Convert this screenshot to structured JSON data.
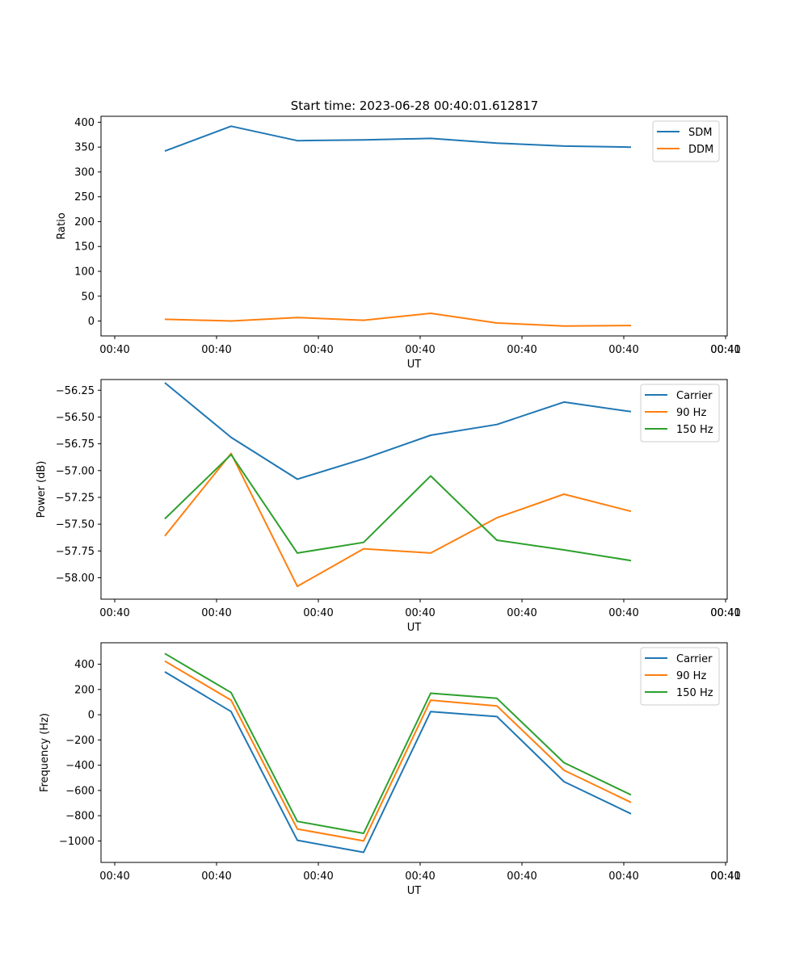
{
  "title": "Start time: 2023-06-28 00:40:01.612817",
  "chart_data": [
    {
      "type": "line",
      "ylabel": "Ratio",
      "xlabel": "UT",
      "x_tick_labels": [
        "00:40",
        "00:40",
        "00:40",
        "00:40",
        "00:40",
        "00:40",
        "00:40",
        "00:41"
      ],
      "ylim": [
        -30,
        412
      ],
      "y_ticks": [
        0,
        50,
        100,
        150,
        200,
        250,
        300,
        350,
        400
      ],
      "legend": "top-right",
      "series": [
        {
          "name": "SDM",
          "color": "#1f77b4",
          "values": [
            342,
            392,
            363,
            364.5,
            367.5,
            358,
            352,
            350
          ]
        },
        {
          "name": "DDM",
          "color": "#ff7f0e",
          "values": [
            3.5,
            0,
            7,
            1.5,
            15.5,
            -4,
            -10,
            -9
          ]
        }
      ]
    },
    {
      "type": "line",
      "ylabel": "Power (dB)",
      "xlabel": "UT",
      "x_tick_labels": [
        "00:40",
        "00:40",
        "00:40",
        "00:40",
        "00:40",
        "00:40",
        "00:40",
        "00:41"
      ],
      "ylim": [
        -58.2,
        -56.15
      ],
      "y_ticks": [
        -58.0,
        -57.75,
        -57.5,
        -57.25,
        -57.0,
        -56.75,
        -56.5,
        -56.25
      ],
      "legend": "top-right",
      "series": [
        {
          "name": "Carrier",
          "color": "#1f77b4",
          "values": [
            -56.18,
            -56.69,
            -57.08,
            -56.89,
            -56.67,
            -56.57,
            -56.36,
            -56.45
          ]
        },
        {
          "name": "90 Hz",
          "color": "#ff7f0e",
          "values": [
            -57.61,
            -56.84,
            -58.08,
            -57.73,
            -57.77,
            -57.44,
            -57.22,
            -57.38
          ]
        },
        {
          "name": "150 Hz",
          "color": "#2ca02c",
          "values": [
            -57.45,
            -56.85,
            -57.77,
            -57.67,
            -57.05,
            -57.65,
            -57.74,
            -57.84
          ]
        }
      ]
    },
    {
      "type": "line",
      "ylabel": "Frequency (Hz)",
      "xlabel": "UT",
      "x_tick_labels": [
        "00:40",
        "00:40",
        "00:40",
        "00:40",
        "00:40",
        "00:40",
        "00:40",
        "00:41"
      ],
      "ylim": [
        -1170,
        570
      ],
      "y_ticks": [
        -1000,
        -800,
        -600,
        -400,
        -200,
        0,
        200,
        400
      ],
      "legend": "top-right",
      "series": [
        {
          "name": "Carrier",
          "color": "#1f77b4",
          "values": [
            340,
            25,
            -995,
            -1090,
            25,
            -15,
            -530,
            -785
          ]
        },
        {
          "name": "90 Hz",
          "color": "#ff7f0e",
          "values": [
            425,
            115,
            -905,
            -1000,
            115,
            70,
            -440,
            -695
          ]
        },
        {
          "name": "150 Hz",
          "color": "#2ca02c",
          "values": [
            485,
            175,
            -845,
            -940,
            170,
            130,
            -380,
            -635
          ]
        }
      ]
    }
  ]
}
